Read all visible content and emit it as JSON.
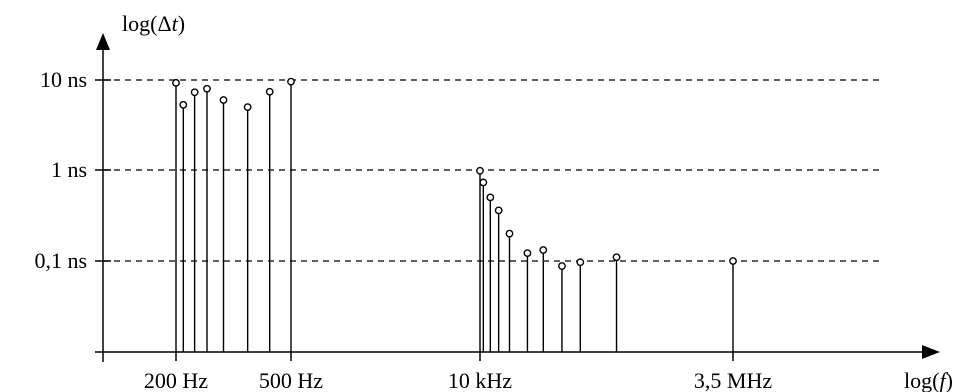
{
  "chart_data": {
    "type": "scatter",
    "style": "stem",
    "xlabel_prefix": "log(",
    "xlabel_var": "f",
    "xlabel_suffix": ")",
    "ylabel_prefix": "log(Δ",
    "ylabel_var": "t",
    "ylabel_suffix": ")",
    "x_scale": "log",
    "y_scale": "log",
    "x_ticks": [
      {
        "value": 200,
        "label": "200 Hz"
      },
      {
        "value": 500,
        "label": "500 Hz"
      },
      {
        "value": 10000,
        "label": "10 kHz"
      },
      {
        "value": 3500000,
        "label": "3,5 MHz"
      }
    ],
    "y_ticks": [
      {
        "value": 10,
        "label": "10 ns"
      },
      {
        "value": 1,
        "label": "1 ns"
      },
      {
        "value": 0.1,
        "label": "0,1 ns"
      }
    ],
    "grid": "horizontal-dashed",
    "x_unit": "Hz",
    "y_unit": "ns",
    "points": [
      {
        "x": 200,
        "y": 9.3
      },
      {
        "x": 212,
        "y": 5.3
      },
      {
        "x": 232,
        "y": 7.3
      },
      {
        "x": 256,
        "y": 8.0
      },
      {
        "x": 292,
        "y": 6.0
      },
      {
        "x": 354,
        "y": 5.0
      },
      {
        "x": 422,
        "y": 7.4
      },
      {
        "x": 500,
        "y": 9.6
      },
      {
        "x": 10000,
        "y": 0.98
      },
      {
        "x": 10800,
        "y": 0.73
      },
      {
        "x": 12700,
        "y": 0.5
      },
      {
        "x": 15400,
        "y": 0.36
      },
      {
        "x": 19800,
        "y": 0.2
      },
      {
        "x": 30000,
        "y": 0.122
      },
      {
        "x": 43300,
        "y": 0.132
      },
      {
        "x": 66700,
        "y": 0.088
      },
      {
        "x": 102000,
        "y": 0.097
      },
      {
        "x": 236000,
        "y": 0.11
      },
      {
        "x": 3500000,
        "y": 0.1
      }
    ]
  }
}
